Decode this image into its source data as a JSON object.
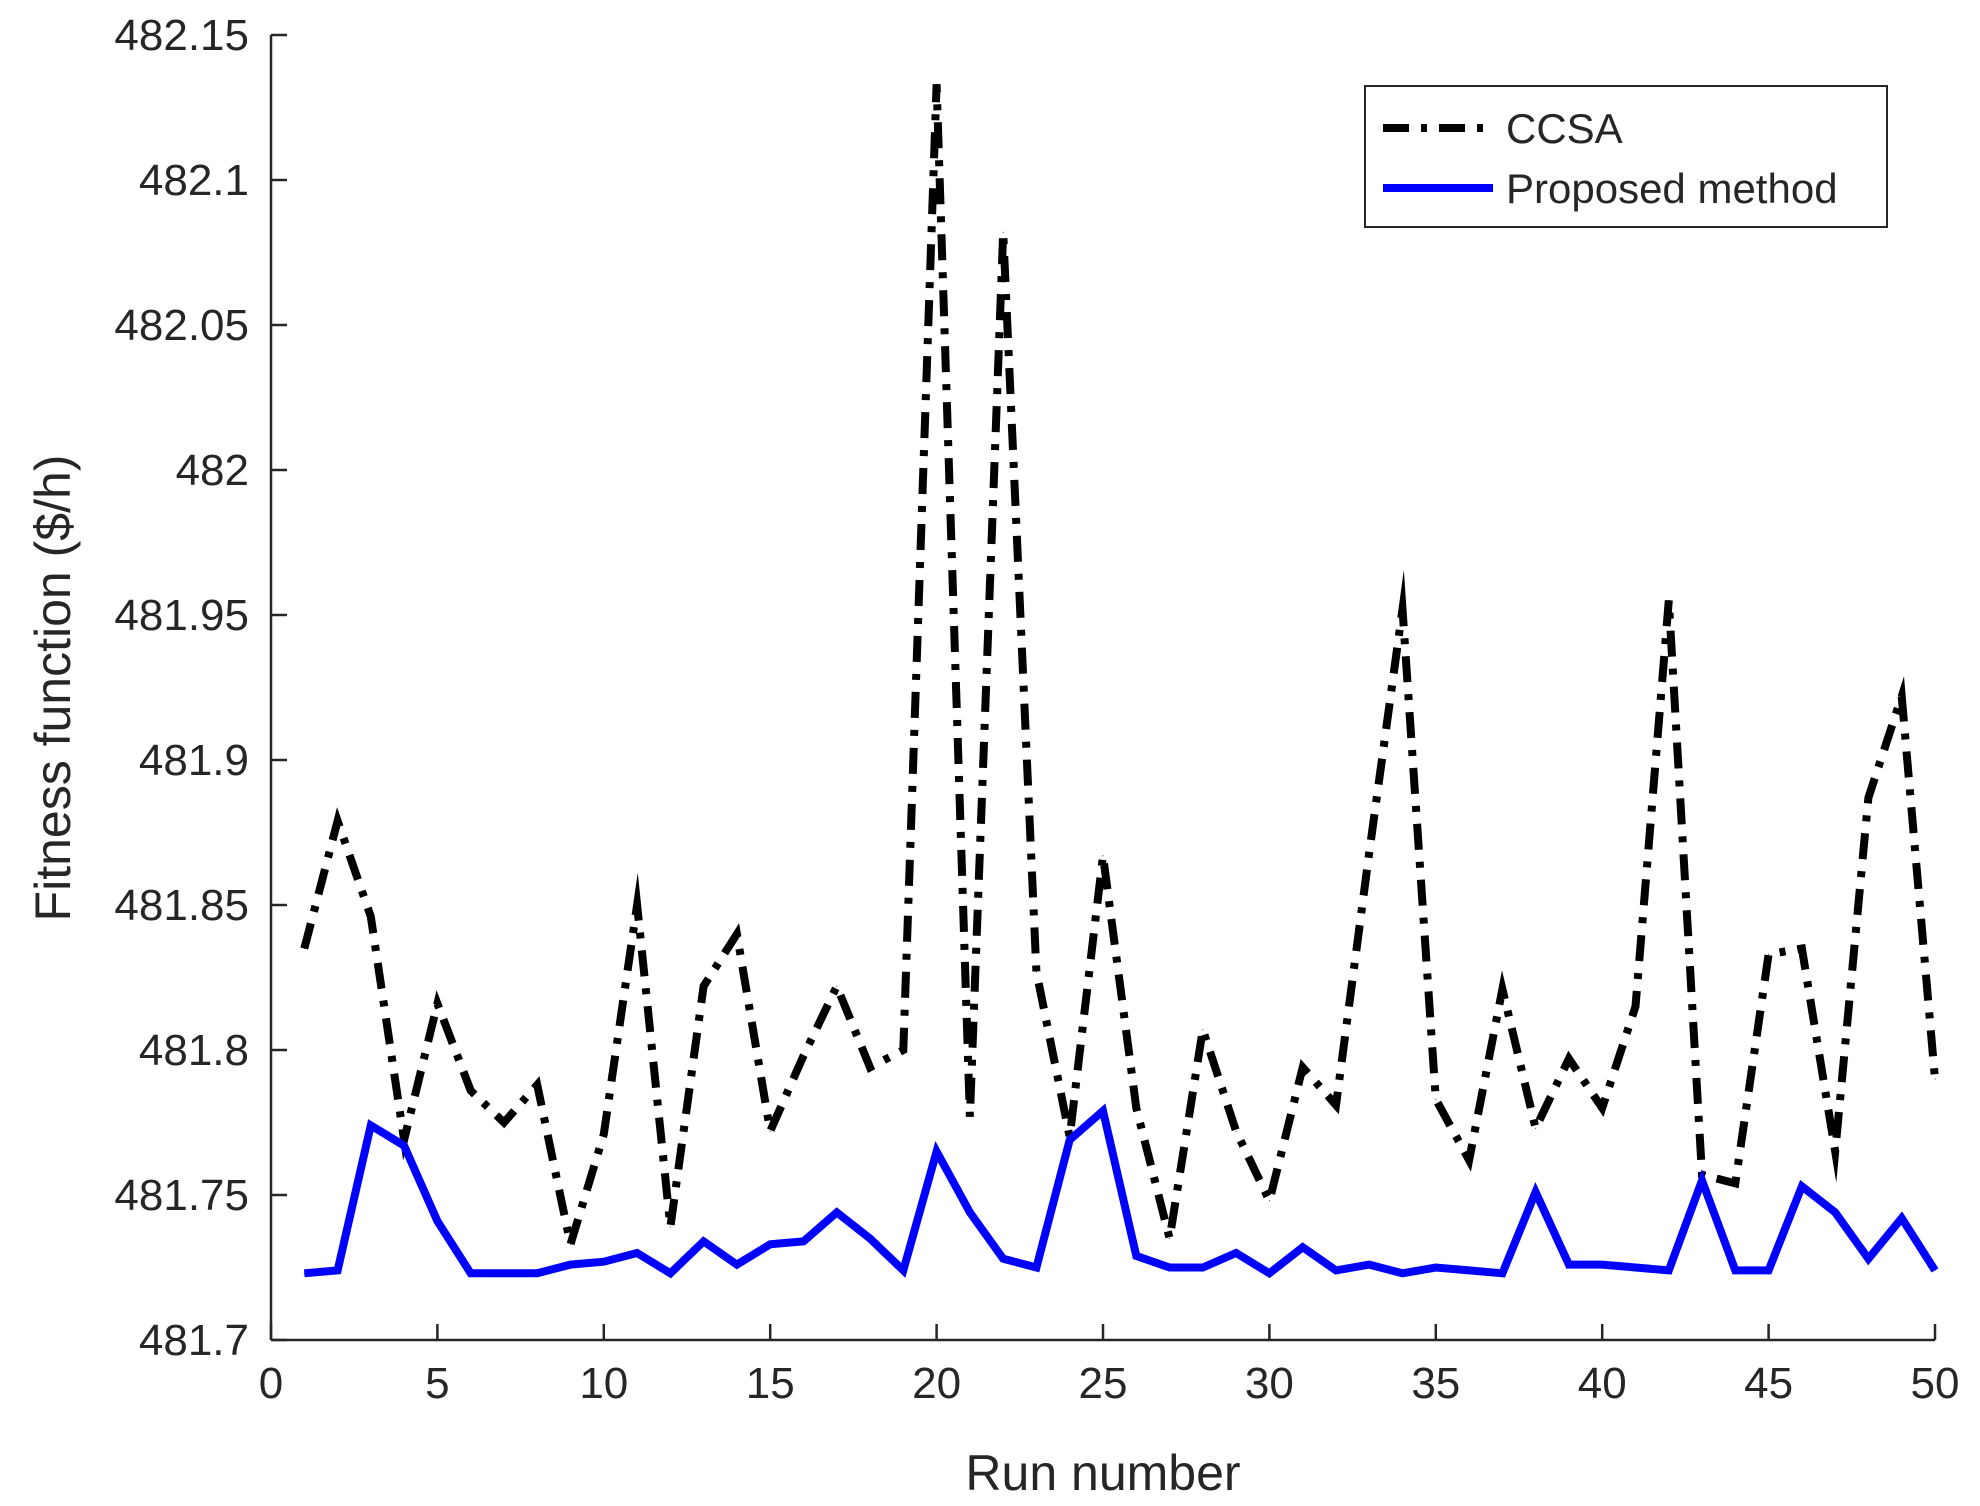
{
  "chart_data": {
    "type": "line",
    "title": "",
    "xlabel": "Run number",
    "ylabel": "Fitness function ($/h)",
    "xlim": [
      0,
      50
    ],
    "ylim": [
      481.7,
      482.15
    ],
    "xticks": [
      0,
      5,
      10,
      15,
      20,
      25,
      30,
      35,
      40,
      45,
      50
    ],
    "xtick_labels": [
      "0",
      "5",
      "10",
      "15",
      "20",
      "25",
      "30",
      "35",
      "40",
      "45",
      "50"
    ],
    "yticks": [
      481.7,
      481.75,
      481.8,
      481.85,
      481.9,
      481.95,
      482,
      482.05,
      482.1,
      482.15
    ],
    "ytick_labels": [
      "481.7",
      "481.75",
      "481.8",
      "481.85",
      "481.9",
      "481.95",
      "482",
      "482.05",
      "482.1",
      "482.15"
    ],
    "grid": false,
    "legend_position": "top-right",
    "x": [
      1,
      2,
      3,
      4,
      5,
      6,
      7,
      8,
      9,
      10,
      11,
      12,
      13,
      14,
      15,
      16,
      17,
      18,
      19,
      20,
      21,
      22,
      23,
      24,
      25,
      26,
      27,
      28,
      29,
      30,
      31,
      32,
      33,
      34,
      35,
      36,
      37,
      38,
      39,
      40,
      41,
      42,
      43,
      44,
      45,
      46,
      47,
      48,
      49,
      50
    ],
    "series": [
      {
        "name": "CCSA",
        "color": "#000000",
        "style": "dash-dot",
        "values": [
          481.835,
          481.879,
          481.846,
          481.769,
          481.816,
          481.786,
          481.775,
          481.788,
          481.733,
          481.771,
          481.85,
          481.739,
          481.822,
          481.84,
          481.772,
          481.798,
          481.822,
          481.794,
          481.8,
          482.133,
          481.777,
          482.082,
          481.827,
          481.77,
          481.867,
          481.78,
          481.735,
          481.807,
          481.772,
          481.748,
          481.794,
          481.781,
          481.868,
          481.952,
          481.783,
          481.762,
          481.821,
          481.773,
          481.797,
          481.78,
          481.815,
          481.955,
          481.757,
          481.754,
          481.833,
          481.835,
          481.765,
          481.887,
          481.922,
          481.79
        ]
      },
      {
        "name": "Proposed method",
        "color": "#0000ff",
        "style": "solid",
        "values": [
          481.723,
          481.724,
          481.774,
          481.767,
          481.741,
          481.723,
          481.723,
          481.723,
          481.726,
          481.727,
          481.73,
          481.723,
          481.734,
          481.726,
          481.733,
          481.734,
          481.744,
          481.735,
          481.724,
          481.765,
          481.744,
          481.728,
          481.725,
          481.769,
          481.779,
          481.729,
          481.725,
          481.725,
          481.73,
          481.723,
          481.732,
          481.724,
          481.726,
          481.723,
          481.725,
          481.724,
          481.723,
          481.751,
          481.726,
          481.726,
          481.725,
          481.724,
          481.755,
          481.724,
          481.724,
          481.753,
          481.744,
          481.728,
          481.742,
          481.724
        ]
      }
    ]
  }
}
